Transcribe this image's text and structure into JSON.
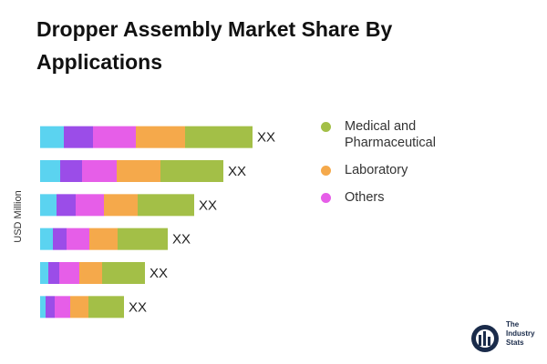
{
  "chart_data": {
    "type": "stacked-bar-horizontal",
    "title": "Dropper Assembly Market Share By Applications",
    "y_label": "USD Million",
    "categories": [
      null,
      null,
      null,
      null,
      null,
      null
    ],
    "series": [
      {
        "color": "#5bd3f0",
        "values": [
          26,
          22,
          18,
          14,
          9,
          6
        ]
      },
      {
        "color": "#9b4de8",
        "values": [
          32,
          24,
          21,
          15,
          12,
          10
        ]
      },
      {
        "name": "Others",
        "color": "#e65ee8",
        "values": [
          47,
          38,
          31,
          25,
          22,
          17
        ]
      },
      {
        "name": "Laboratory",
        "color": "#f5a94b",
        "values": [
          54,
          48,
          37,
          31,
          25,
          20
        ]
      },
      {
        "name": "Medical and Pharmaceutical",
        "color": "#a3bf47",
        "values": [
          74,
          69,
          62,
          55,
          47,
          39
        ]
      }
    ],
    "total_labels": [
      "XX",
      "XX",
      "XX",
      "XX",
      "XX",
      "XX"
    ],
    "xlim": [
      0,
      250
    ],
    "legend": "right"
  },
  "logo_text": [
    "The",
    "Industry",
    "Stats"
  ]
}
